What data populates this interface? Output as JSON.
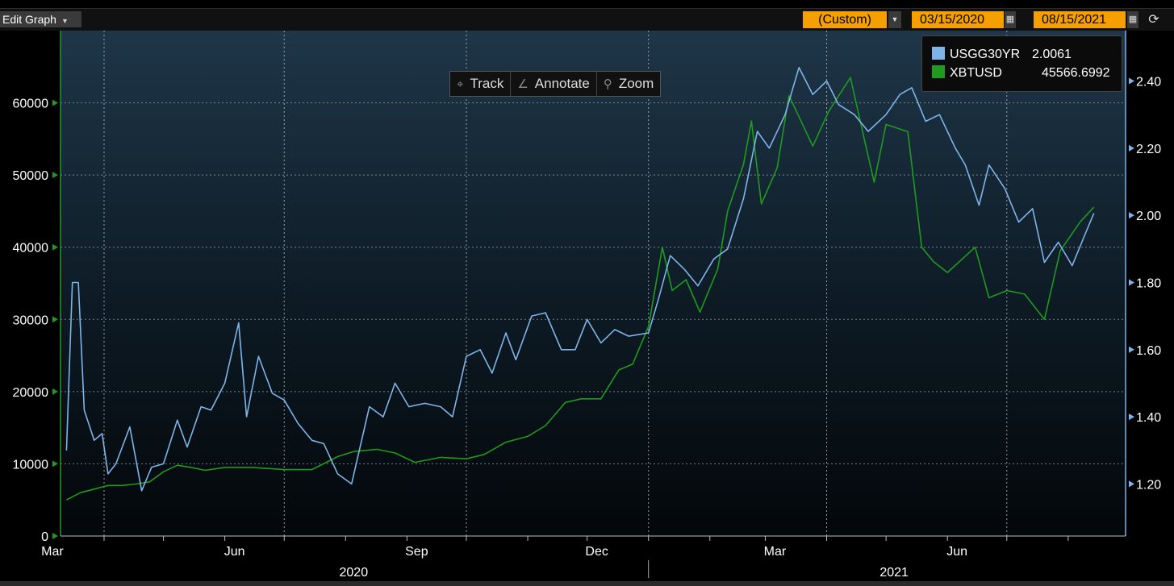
{
  "toolbar": {
    "edit_label": "Edit Graph",
    "period_label": "(Custom)",
    "start_date": "03/15/2020",
    "end_date": "08/15/2021"
  },
  "tools": {
    "track": "Track",
    "annotate": "Annotate",
    "zoom": "Zoom"
  },
  "legend": {
    "s1_name": "USGG30YR",
    "s1_value": "2.0061",
    "s2_name": "XBTUSD",
    "s2_value": "45566.6992"
  },
  "colors": {
    "usgg": "#7fb4e8",
    "xbt": "#1f9a1f",
    "accent": "#f5a000"
  },
  "chart_data": {
    "type": "line",
    "x_range": [
      "2020-03-10",
      "2021-08-30"
    ],
    "yleft": {
      "range": [
        0,
        70000
      ],
      "ticks": [
        0,
        10000,
        20000,
        30000,
        40000,
        50000,
        60000
      ]
    },
    "yright": {
      "range": [
        1.045,
        2.55
      ],
      "ticks": [
        "1.20",
        "1.40",
        "1.60",
        "1.80",
        "2.00",
        "2.20",
        "2.40"
      ]
    },
    "x_month_labels": [
      {
        "label": "Mar",
        "date": "2020-03-01"
      },
      {
        "label": "Jun",
        "date": "2020-06-01"
      },
      {
        "label": "Sep",
        "date": "2020-09-01"
      },
      {
        "label": "Dec",
        "date": "2020-12-01"
      },
      {
        "label": "Mar",
        "date": "2021-03-01"
      },
      {
        "label": "Jun",
        "date": "2021-06-01"
      }
    ],
    "x_year_labels": [
      {
        "label": "2020",
        "date": "2020-08-01"
      },
      {
        "label": "2021",
        "date": "2021-05-01"
      }
    ],
    "grid": true,
    "series": [
      {
        "name": "XBTUSD",
        "axis": "left",
        "color": "#1f9a1f",
        "points": [
          [
            "2020-03-13",
            5000
          ],
          [
            "2020-03-20",
            6000
          ],
          [
            "2020-03-27",
            6500
          ],
          [
            "2020-04-03",
            7000
          ],
          [
            "2020-04-10",
            7000
          ],
          [
            "2020-04-17",
            7200
          ],
          [
            "2020-04-24",
            7500
          ],
          [
            "2020-05-01",
            8900
          ],
          [
            "2020-05-08",
            9800
          ],
          [
            "2020-05-15",
            9500
          ],
          [
            "2020-05-22",
            9100
          ],
          [
            "2020-06-01",
            9500
          ],
          [
            "2020-06-15",
            9500
          ],
          [
            "2020-07-01",
            9200
          ],
          [
            "2020-07-15",
            9200
          ],
          [
            "2020-07-28",
            11000
          ],
          [
            "2020-08-05",
            11700
          ],
          [
            "2020-08-17",
            12000
          ],
          [
            "2020-08-26",
            11500
          ],
          [
            "2020-09-05",
            10200
          ],
          [
            "2020-09-18",
            10900
          ],
          [
            "2020-10-01",
            10700
          ],
          [
            "2020-10-10",
            11300
          ],
          [
            "2020-10-21",
            13000
          ],
          [
            "2020-11-01",
            13800
          ],
          [
            "2020-11-10",
            15300
          ],
          [
            "2020-11-20",
            18500
          ],
          [
            "2020-11-28",
            19000
          ],
          [
            "2020-12-08",
            19000
          ],
          [
            "2020-12-17",
            23000
          ],
          [
            "2020-12-24",
            23800
          ],
          [
            "2021-01-01",
            29000
          ],
          [
            "2021-01-08",
            40000
          ],
          [
            "2021-01-13",
            34000
          ],
          [
            "2021-01-20",
            35500
          ],
          [
            "2021-01-27",
            31000
          ],
          [
            "2021-02-05",
            37000
          ],
          [
            "2021-02-10",
            45000
          ],
          [
            "2021-02-18",
            51500
          ],
          [
            "2021-02-22",
            57500
          ],
          [
            "2021-02-27",
            46000
          ],
          [
            "2021-03-07",
            51000
          ],
          [
            "2021-03-13",
            61000
          ],
          [
            "2021-03-25",
            54000
          ],
          [
            "2021-04-02",
            58800
          ],
          [
            "2021-04-13",
            63500
          ],
          [
            "2021-04-20",
            55000
          ],
          [
            "2021-04-25",
            49000
          ],
          [
            "2021-05-01",
            57000
          ],
          [
            "2021-05-12",
            56000
          ],
          [
            "2021-05-19",
            40000
          ],
          [
            "2021-05-25",
            38000
          ],
          [
            "2021-06-01",
            36500
          ],
          [
            "2021-06-15",
            40000
          ],
          [
            "2021-06-22",
            33000
          ],
          [
            "2021-07-01",
            34000
          ],
          [
            "2021-07-10",
            33500
          ],
          [
            "2021-07-20",
            30000
          ],
          [
            "2021-07-28",
            39500
          ],
          [
            "2021-08-07",
            43500
          ],
          [
            "2021-08-14",
            45566
          ]
        ]
      },
      {
        "name": "USGG30YR",
        "axis": "right",
        "color": "#7fb4e8",
        "points": [
          [
            "2020-03-13",
            1.3
          ],
          [
            "2020-03-16",
            1.8
          ],
          [
            "2020-03-19",
            1.8
          ],
          [
            "2020-03-22",
            1.42
          ],
          [
            "2020-03-27",
            1.33
          ],
          [
            "2020-03-31",
            1.35
          ],
          [
            "2020-04-03",
            1.23
          ],
          [
            "2020-04-07",
            1.26
          ],
          [
            "2020-04-14",
            1.37
          ],
          [
            "2020-04-20",
            1.18
          ],
          [
            "2020-04-25",
            1.25
          ],
          [
            "2020-05-01",
            1.26
          ],
          [
            "2020-05-08",
            1.39
          ],
          [
            "2020-05-13",
            1.31
          ],
          [
            "2020-05-20",
            1.43
          ],
          [
            "2020-05-25",
            1.42
          ],
          [
            "2020-06-01",
            1.5
          ],
          [
            "2020-06-08",
            1.68
          ],
          [
            "2020-06-12",
            1.4
          ],
          [
            "2020-06-18",
            1.58
          ],
          [
            "2020-06-25",
            1.47
          ],
          [
            "2020-07-01",
            1.45
          ],
          [
            "2020-07-08",
            1.38
          ],
          [
            "2020-07-15",
            1.33
          ],
          [
            "2020-07-21",
            1.32
          ],
          [
            "2020-07-28",
            1.23
          ],
          [
            "2020-08-04",
            1.2
          ],
          [
            "2020-08-13",
            1.43
          ],
          [
            "2020-08-20",
            1.4
          ],
          [
            "2020-08-26",
            1.5
          ],
          [
            "2020-09-02",
            1.43
          ],
          [
            "2020-09-10",
            1.44
          ],
          [
            "2020-09-18",
            1.43
          ],
          [
            "2020-09-24",
            1.4
          ],
          [
            "2020-10-01",
            1.58
          ],
          [
            "2020-10-08",
            1.6
          ],
          [
            "2020-10-14",
            1.53
          ],
          [
            "2020-10-21",
            1.65
          ],
          [
            "2020-10-26",
            1.57
          ],
          [
            "2020-11-03",
            1.7
          ],
          [
            "2020-11-10",
            1.71
          ],
          [
            "2020-11-18",
            1.6
          ],
          [
            "2020-11-25",
            1.6
          ],
          [
            "2020-12-01",
            1.69
          ],
          [
            "2020-12-08",
            1.62
          ],
          [
            "2020-12-15",
            1.66
          ],
          [
            "2020-12-22",
            1.64
          ],
          [
            "2021-01-01",
            1.65
          ],
          [
            "2021-01-06",
            1.75
          ],
          [
            "2021-01-12",
            1.88
          ],
          [
            "2021-01-19",
            1.84
          ],
          [
            "2021-01-26",
            1.79
          ],
          [
            "2021-02-03",
            1.87
          ],
          [
            "2021-02-10",
            1.9
          ],
          [
            "2021-02-18",
            2.05
          ],
          [
            "2021-02-25",
            2.25
          ],
          [
            "2021-03-03",
            2.2
          ],
          [
            "2021-03-11",
            2.3
          ],
          [
            "2021-03-18",
            2.44
          ],
          [
            "2021-03-25",
            2.36
          ],
          [
            "2021-04-01",
            2.4
          ],
          [
            "2021-04-07",
            2.33
          ],
          [
            "2021-04-15",
            2.3
          ],
          [
            "2021-04-22",
            2.25
          ],
          [
            "2021-05-01",
            2.3
          ],
          [
            "2021-05-08",
            2.36
          ],
          [
            "2021-05-14",
            2.38
          ],
          [
            "2021-05-21",
            2.28
          ],
          [
            "2021-05-28",
            2.3
          ],
          [
            "2021-06-05",
            2.2
          ],
          [
            "2021-06-10",
            2.15
          ],
          [
            "2021-06-17",
            2.03
          ],
          [
            "2021-06-22",
            2.15
          ],
          [
            "2021-06-30",
            2.08
          ],
          [
            "2021-07-07",
            1.98
          ],
          [
            "2021-07-14",
            2.02
          ],
          [
            "2021-07-20",
            1.86
          ],
          [
            "2021-07-27",
            1.92
          ],
          [
            "2021-08-03",
            1.85
          ],
          [
            "2021-08-10",
            1.95
          ],
          [
            "2021-08-14",
            2.0061
          ]
        ]
      }
    ]
  }
}
